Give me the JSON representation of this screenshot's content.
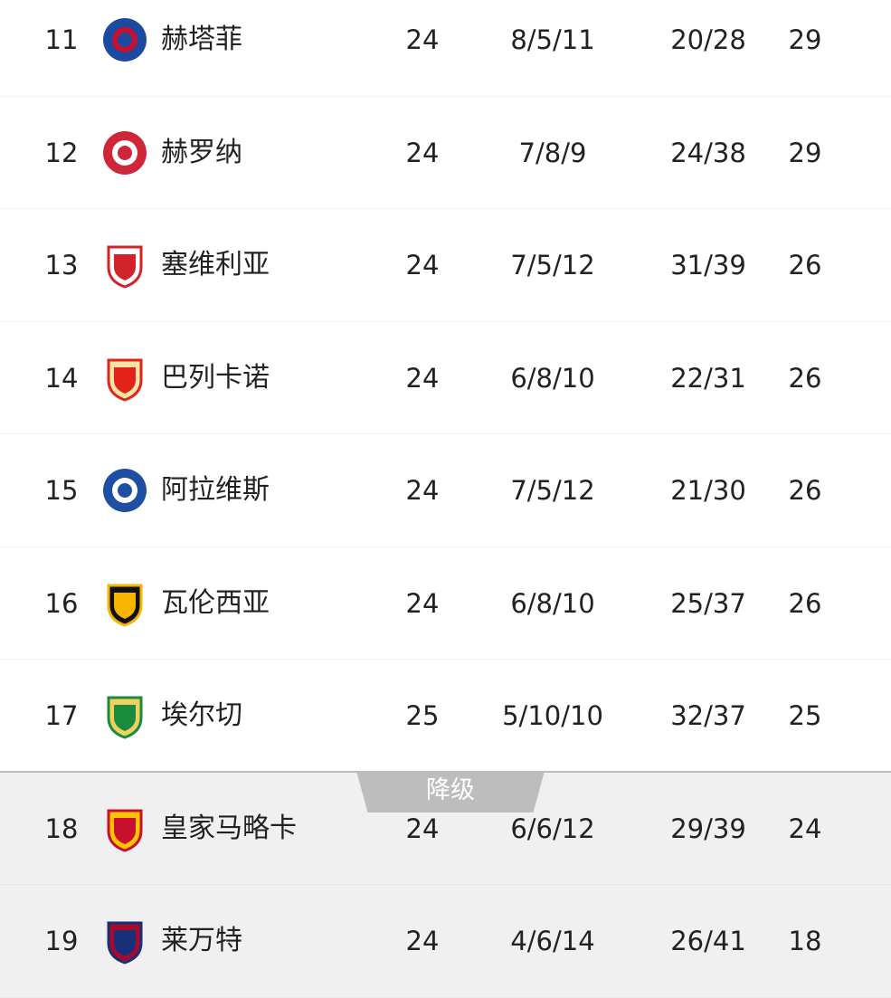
{
  "rows": [
    {
      "rank": "11",
      "team": "赫塔菲",
      "played": "24",
      "wdl": "8/5/11",
      "goals": "20/28",
      "points": "29",
      "logo": "getafe-crest",
      "colors": [
        "#1b4aa0",
        "#c8102e"
      ],
      "relegation": false
    },
    {
      "rank": "12",
      "team": "赫罗纳",
      "played": "24",
      "wdl": "7/8/9",
      "goals": "24/38",
      "points": "29",
      "logo": "girona-crest",
      "colors": [
        "#d0263a",
        "#ffffff"
      ],
      "relegation": false
    },
    {
      "rank": "13",
      "team": "塞维利亚",
      "played": "24",
      "wdl": "7/5/12",
      "goals": "31/39",
      "points": "26",
      "logo": "sevilla-crest",
      "colors": [
        "#d2232a",
        "#ffffff"
      ],
      "relegation": false
    },
    {
      "rank": "14",
      "team": "巴列卡诺",
      "played": "24",
      "wdl": "6/8/10",
      "goals": "22/31",
      "points": "26",
      "logo": "rayo-vallecano-crest",
      "colors": [
        "#e2231a",
        "#f5e6a8"
      ],
      "relegation": false
    },
    {
      "rank": "15",
      "team": "阿拉维斯",
      "played": "24",
      "wdl": "7/5/12",
      "goals": "21/30",
      "points": "26",
      "logo": "alaves-crest",
      "colors": [
        "#1e4fa3",
        "#ffffff"
      ],
      "relegation": false
    },
    {
      "rank": "16",
      "team": "瓦伦西亚",
      "played": "24",
      "wdl": "6/8/10",
      "goals": "25/37",
      "points": "26",
      "logo": "valencia-crest",
      "colors": [
        "#f7b500",
        "#111111"
      ],
      "relegation": false
    },
    {
      "rank": "17",
      "team": "埃尔切",
      "played": "25",
      "wdl": "5/10/10",
      "goals": "32/37",
      "points": "25",
      "logo": "elche-crest",
      "colors": [
        "#1a8a3c",
        "#f0d060"
      ],
      "relegation": false
    },
    {
      "rank": "18",
      "team": "皇家马略卡",
      "played": "24",
      "wdl": "6/6/12",
      "goals": "29/39",
      "points": "24",
      "logo": "mallorca-crest",
      "colors": [
        "#c8102e",
        "#f7c600"
      ],
      "relegation": true
    },
    {
      "rank": "19",
      "team": "莱万特",
      "played": "24",
      "wdl": "4/6/14",
      "goals": "26/41",
      "points": "18",
      "logo": "levante-crest",
      "colors": [
        "#1a2f7a",
        "#a50b2b"
      ],
      "relegation": true
    }
  ],
  "relegation_label": "降级"
}
